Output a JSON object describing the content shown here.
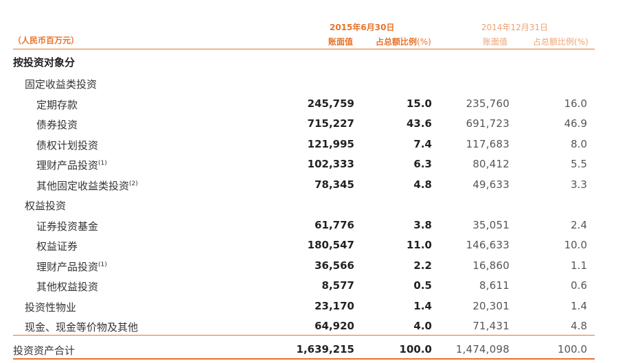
{
  "header": {
    "unit_label": "（人民币百万元）",
    "period_current": "2015年6月30日",
    "period_previous": "2014年12月31日",
    "col_book_value": "账面值",
    "col_percent": "占总额比例",
    "col_percent_suffix": "(%)"
  },
  "section_title": "按投资对象分",
  "rows": [
    {
      "label": "固定收益类投资",
      "note": "",
      "level": 1,
      "cur_value": "",
      "cur_pct": "",
      "prev_value": "",
      "prev_pct": ""
    },
    {
      "label": "定期存款",
      "note": "",
      "level": 2,
      "cur_value": "245,759",
      "cur_pct": "15.0",
      "prev_value": "235,760",
      "prev_pct": "16.0"
    },
    {
      "label": "债券投资",
      "note": "",
      "level": 2,
      "cur_value": "715,227",
      "cur_pct": "43.6",
      "prev_value": "691,723",
      "prev_pct": "46.9"
    },
    {
      "label": "债权计划投资",
      "note": "",
      "level": 2,
      "cur_value": "121,995",
      "cur_pct": "7.4",
      "prev_value": "117,683",
      "prev_pct": "8.0"
    },
    {
      "label": "理财产品投资",
      "note": "(1)",
      "level": 2,
      "cur_value": "102,333",
      "cur_pct": "6.3",
      "prev_value": "80,412",
      "prev_pct": "5.5"
    },
    {
      "label": "其他固定收益类投资",
      "note": "(2)",
      "level": 2,
      "cur_value": "78,345",
      "cur_pct": "4.8",
      "prev_value": "49,633",
      "prev_pct": "3.3"
    },
    {
      "label": "权益投资",
      "note": "",
      "level": 1,
      "cur_value": "",
      "cur_pct": "",
      "prev_value": "",
      "prev_pct": ""
    },
    {
      "label": "证券投资基金",
      "note": "",
      "level": 2,
      "cur_value": "61,776",
      "cur_pct": "3.8",
      "prev_value": "35,051",
      "prev_pct": "2.4"
    },
    {
      "label": "权益证券",
      "note": "",
      "level": 2,
      "cur_value": "180,547",
      "cur_pct": "11.0",
      "prev_value": "146,633",
      "prev_pct": "10.0"
    },
    {
      "label": "理财产品投资",
      "note": "(1)",
      "level": 2,
      "cur_value": "36,566",
      "cur_pct": "2.2",
      "prev_value": "16,860",
      "prev_pct": "1.1"
    },
    {
      "label": "其他权益投资",
      "note": "",
      "level": 2,
      "cur_value": "8,577",
      "cur_pct": "0.5",
      "prev_value": "8,611",
      "prev_pct": "0.6"
    },
    {
      "label": "投资性物业",
      "note": "",
      "level": 1,
      "cur_value": "23,170",
      "cur_pct": "1.4",
      "prev_value": "20,301",
      "prev_pct": "1.4"
    },
    {
      "label": "现金、现金等价物及其他",
      "note": "",
      "level": 1,
      "cur_value": "64,920",
      "cur_pct": "4.0",
      "prev_value": "71,431",
      "prev_pct": "4.8"
    }
  ],
  "total": {
    "label": "投资资产合计",
    "cur_value": "1,639,215",
    "cur_pct": "100.0",
    "prev_value": "1,474,098",
    "prev_pct": "100.0"
  },
  "colors": {
    "accent": "#e8732a",
    "accent_light": "#f0a070",
    "text": "#333333"
  }
}
